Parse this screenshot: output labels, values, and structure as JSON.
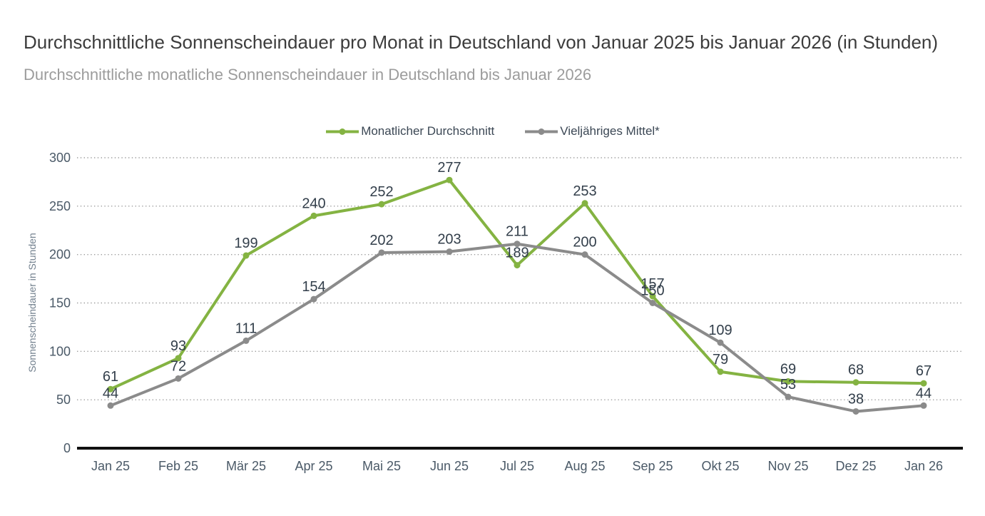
{
  "header": {
    "title": "Durchschnittliche Sonnenscheindauer pro Monat in Deutschland von Januar 2025 bis Januar 2026 (in Stunden)",
    "subtitle": "Durchschnittliche monatliche Sonnenscheindauer in Deutschland bis Januar 2026"
  },
  "chart_data": {
    "type": "line",
    "title": "Durchschnittliche Sonnenscheindauer pro Monat in Deutschland von Januar 2025 bis Januar 2026 (in Stunden)",
    "subtitle": "Durchschnittliche monatliche Sonnenscheindauer in Deutschland bis Januar 2026",
    "categories": [
      "Jan 25",
      "Feb 25",
      "Mär 25",
      "Apr 25",
      "Mai 25",
      "Jun 25",
      "Jul 25",
      "Aug 25",
      "Sep 25",
      "Okt 25",
      "Nov 25",
      "Dez 25",
      "Jan 26"
    ],
    "series": [
      {
        "name": "Monatlicher Durchschnitt",
        "color": "#84b342",
        "values": [
          61,
          93,
          199,
          240,
          252,
          277,
          189,
          253,
          157,
          79,
          69,
          68,
          67
        ]
      },
      {
        "name": "Vieljähriges Mittel*",
        "color": "#8b8b8b",
        "values": [
          44,
          72,
          111,
          154,
          202,
          203,
          211,
          200,
          150,
          109,
          53,
          38,
          44
        ]
      }
    ],
    "ylabel": "Sonnenscheindauer in Stunden",
    "xlabel": "",
    "yticks": [
      0,
      50,
      100,
      150,
      200,
      250,
      300
    ],
    "ylim": [
      0,
      300
    ],
    "grid": true,
    "grid_style": "dotted",
    "legend_position": "top",
    "data_labels": true,
    "colors": {
      "data_label": "#333f4b",
      "tick_label": "#4a5967",
      "axis_title": "#72808e",
      "axis_line": "#111111",
      "gridline": "#9e9e9e"
    }
  }
}
